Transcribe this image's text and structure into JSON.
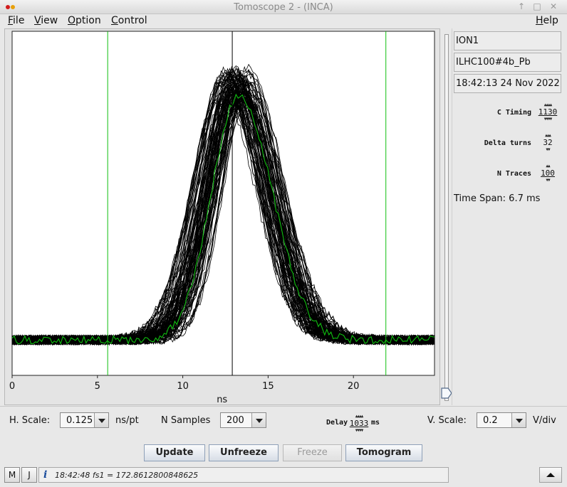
{
  "window": {
    "title": "Tomoscope 2 - (INCA)",
    "controls": [
      "↑",
      "□",
      "✕"
    ]
  },
  "menu": {
    "file": "File",
    "view": "View",
    "option": "Option",
    "control": "Control",
    "help": "Help"
  },
  "side_panel": {
    "device": "ION1",
    "beam": "ILHC100#4b_Pb",
    "datetime": "18:42:13 24 Nov 2022",
    "c_timing": {
      "label": "C Timing",
      "value": "1130"
    },
    "delta_turns": {
      "label": "Delta turns",
      "value": "32"
    },
    "n_traces": {
      "label": "N Traces",
      "value": "100"
    },
    "time_span": "Time Span: 6.7 ms"
  },
  "controls": {
    "h_scale": {
      "label": "H. Scale:",
      "value": "0.125",
      "unit": "ns/pt"
    },
    "n_samples": {
      "label": "N Samples",
      "value": "200"
    },
    "delay": {
      "label": "Delay",
      "value": "1033",
      "unit": "ms"
    },
    "v_scale": {
      "label": "V. Scale:",
      "value": "0.2",
      "unit": "V/div"
    }
  },
  "buttons": {
    "update": "Update",
    "unfreeze": "Unfreeze",
    "freeze": "Freeze",
    "tomogram": "Tomogram"
  },
  "statusbar": {
    "m": "M",
    "j": "J",
    "info_icon": "i",
    "message": "18:42:48 fs1 = 172.8612800848625"
  },
  "colors": {
    "traces": "#000000",
    "average_trace": "#10c010",
    "marker_lines": "#10c010",
    "center_line": "#000000",
    "plot_bg": "#ffffff"
  },
  "chart_data": {
    "type": "line",
    "xlabel": "ns",
    "xlim": [
      0,
      24.75
    ],
    "x_ticks": [
      "0",
      "5",
      "10",
      "15",
      "20"
    ],
    "x_tick_values": [
      0,
      5,
      10,
      15,
      20
    ],
    "grid": false,
    "series_count": 100,
    "baseline": 0.03,
    "peak": 0.95,
    "pulse_center_ns": 13.1,
    "pulse_sigma_ns": 1.7,
    "markers_ns": {
      "left": 5.6,
      "center": 12.9,
      "right": 21.9
    }
  }
}
